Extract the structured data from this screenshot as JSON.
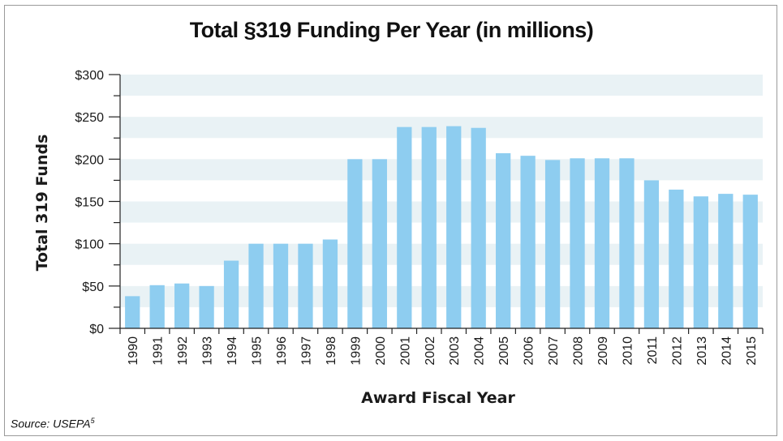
{
  "chart_data": {
    "type": "bar",
    "title": "Total §319 Funding Per Year (in millions)",
    "xlabel": "Award Fiscal Year",
    "ylabel": "Total 319 Funds",
    "ylim": [
      0,
      300
    ],
    "yticks": [
      0,
      50,
      100,
      150,
      200,
      250,
      300
    ],
    "ytick_labels": [
      "$0",
      "$50",
      "$100",
      "$150",
      "$200",
      "$250",
      "$300"
    ],
    "categories": [
      "1990",
      "1991",
      "1992",
      "1993",
      "1994",
      "1995",
      "1996",
      "1997",
      "1998",
      "1999",
      "2000",
      "2001",
      "2002",
      "2003",
      "2004",
      "2005",
      "2006",
      "2007",
      "2008",
      "2009",
      "2010",
      "2011",
      "2012",
      "2013",
      "2014",
      "2015"
    ],
    "values": [
      38,
      51,
      53,
      50,
      80,
      100,
      100,
      100,
      105,
      200,
      200,
      238,
      238,
      239,
      237,
      207,
      204,
      199,
      201,
      201,
      201,
      175,
      164,
      156,
      159,
      158
    ],
    "bar_color": "#8ecdf0",
    "band_color": "#e9f2f5",
    "grid": false
  },
  "source": {
    "text": "Source: USEPA",
    "superscript": "5"
  }
}
